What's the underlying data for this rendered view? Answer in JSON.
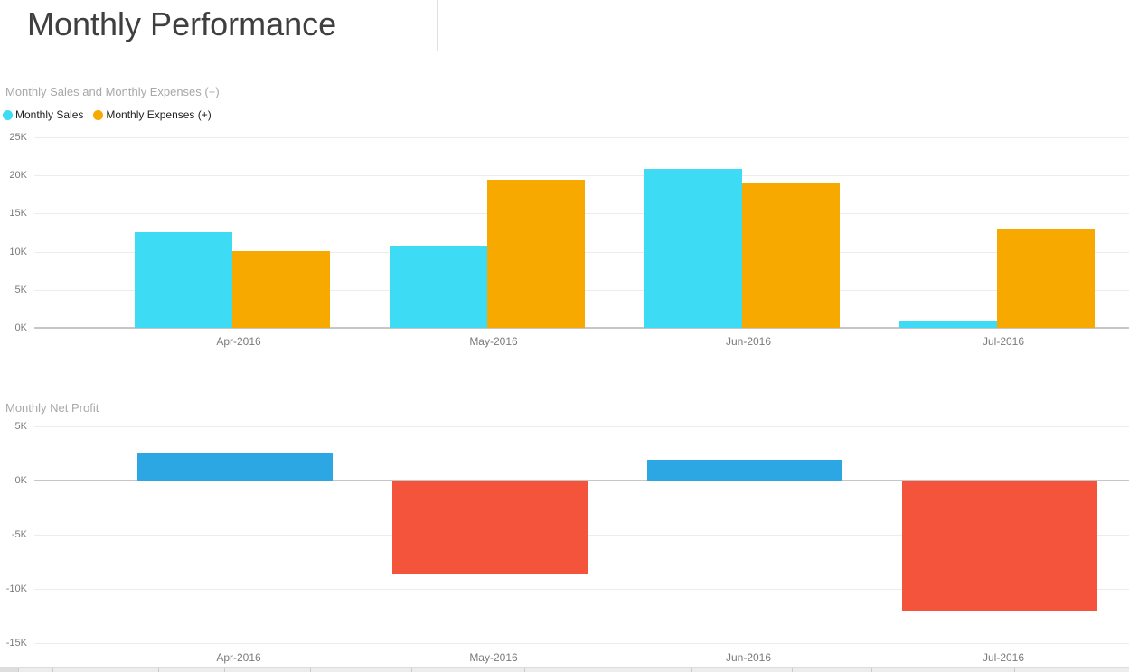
{
  "page": {
    "title": "Monthly Performance"
  },
  "chart_data": [
    {
      "type": "bar",
      "title": "Monthly Sales and Monthly Expenses (+)",
      "categories": [
        "Apr-2016",
        "May-2016",
        "Jun-2016",
        "Jul-2016"
      ],
      "series": [
        {
          "name": "Monthly Sales",
          "color": "#3EDBF5",
          "values": [
            12600,
            10800,
            20800,
            1000
          ]
        },
        {
          "name": "Monthly Expenses (+)",
          "color": "#F7A900",
          "values": [
            10100,
            19400,
            18900,
            13000
          ]
        }
      ],
      "ylim": [
        0,
        25000
      ],
      "yticks_top_to_bottom": [
        "25K",
        "20K",
        "15K",
        "10K",
        "5K",
        "0K"
      ],
      "grid": true,
      "legend_position": "top-left"
    },
    {
      "type": "bar",
      "title": "Monthly Net Profit",
      "categories": [
        "Apr-2016",
        "May-2016",
        "Jun-2016",
        "Jul-2016"
      ],
      "series": [
        {
          "name": "Monthly Net Profit",
          "values": [
            2500,
            -8600,
            1900,
            -12000
          ]
        }
      ],
      "positive_color": "#2CA7E4",
      "negative_color": "#F4533C",
      "ylim": [
        -15000,
        5000
      ],
      "yticks_top_to_bottom": [
        "5K",
        "0K",
        "-5K",
        "-10K",
        "-15K"
      ],
      "grid": true,
      "legend_position": "none"
    }
  ],
  "colors": {
    "sales": "#3EDBF5",
    "expenses": "#F7A900",
    "profit_positive": "#2CA7E4",
    "profit_negative": "#F4533C",
    "gridline": "#ececec",
    "axis_line": "#c6c6c6",
    "tick_text": "#7a7a7a",
    "chart_title_text": "#a8a8a8"
  }
}
